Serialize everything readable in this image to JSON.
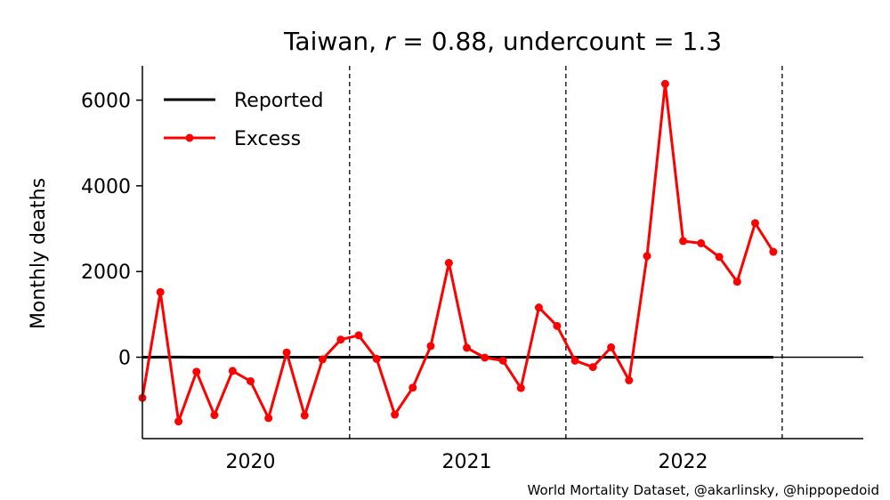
{
  "chart_data": {
    "type": "line",
    "title": "Taiwan, r = 0.88, undercount = 1.3",
    "title_parts": {
      "country": "Taiwan, ",
      "r_symbol": "r",
      "r_rest": " = 0.88, undercount = 1.3"
    },
    "xlabel": "",
    "ylabel": "Monthly deaths",
    "credit": "World Mortality Dataset, @akarlinsky, @hippopedoid",
    "xlim": [
      2020.0,
      2023.333
    ],
    "ylim": [
      -1900,
      6800
    ],
    "yticks": [
      0,
      2000,
      4000,
      6000
    ],
    "ytick_labels": [
      "0",
      "2000",
      "4000",
      "6000"
    ],
    "xticks": [
      2020.5,
      2021.5,
      2022.5
    ],
    "xtick_labels": [
      "2020",
      "2021",
      "2022"
    ],
    "vlines": [
      2020.958,
      2021.958,
      2022.958
    ],
    "hline": 0,
    "grid": false,
    "legend_position": "top-left",
    "series": [
      {
        "name": "Reported",
        "color": "#000000",
        "marker": false,
        "x": [
          2020.0,
          2020.083,
          2020.167,
          2020.25,
          2020.333,
          2020.417,
          2020.5,
          2020.583,
          2020.667,
          2020.75,
          2020.833,
          2020.917,
          2021.0,
          2021.083,
          2021.167,
          2021.25,
          2021.333,
          2021.417,
          2021.5,
          2021.583,
          2021.667,
          2021.75,
          2021.833,
          2021.917,
          2022.0,
          2022.083,
          2022.167,
          2022.25,
          2022.333,
          2022.417,
          2022.5,
          2022.583,
          2022.667,
          2022.75,
          2022.833,
          2022.917
        ],
        "values": [
          0,
          1,
          2,
          0,
          0,
          0,
          0,
          0,
          0,
          0,
          0,
          0,
          0,
          0,
          0,
          0,
          0,
          0,
          0,
          0,
          0,
          0,
          0,
          0,
          0,
          0,
          0,
          0,
          0,
          0,
          0,
          0,
          0,
          0,
          0,
          0
        ]
      },
      {
        "name": "Excess",
        "color": "#ff0000",
        "marker": true,
        "x": [
          2020.0,
          2020.083,
          2020.167,
          2020.25,
          2020.333,
          2020.417,
          2020.5,
          2020.583,
          2020.667,
          2020.75,
          2020.833,
          2020.917,
          2021.0,
          2021.083,
          2021.167,
          2021.25,
          2021.333,
          2021.417,
          2021.5,
          2021.583,
          2021.667,
          2021.75,
          2021.833,
          2021.917,
          2022.0,
          2022.083,
          2022.167,
          2022.25,
          2022.333,
          2022.417,
          2022.5,
          2022.583,
          2022.667,
          2022.75,
          2022.833,
          2022.917
        ],
        "values": [
          -950,
          1520,
          -1500,
          -340,
          -1350,
          -320,
          -560,
          -1420,
          110,
          -1360,
          -50,
          410,
          510,
          -40,
          -1340,
          -710,
          260,
          2200,
          220,
          -10,
          -80,
          -720,
          1160,
          730,
          -80,
          -230,
          230,
          -540,
          2360,
          6380,
          2710,
          2660,
          2340,
          1760,
          3130,
          2460
        ]
      }
    ]
  }
}
